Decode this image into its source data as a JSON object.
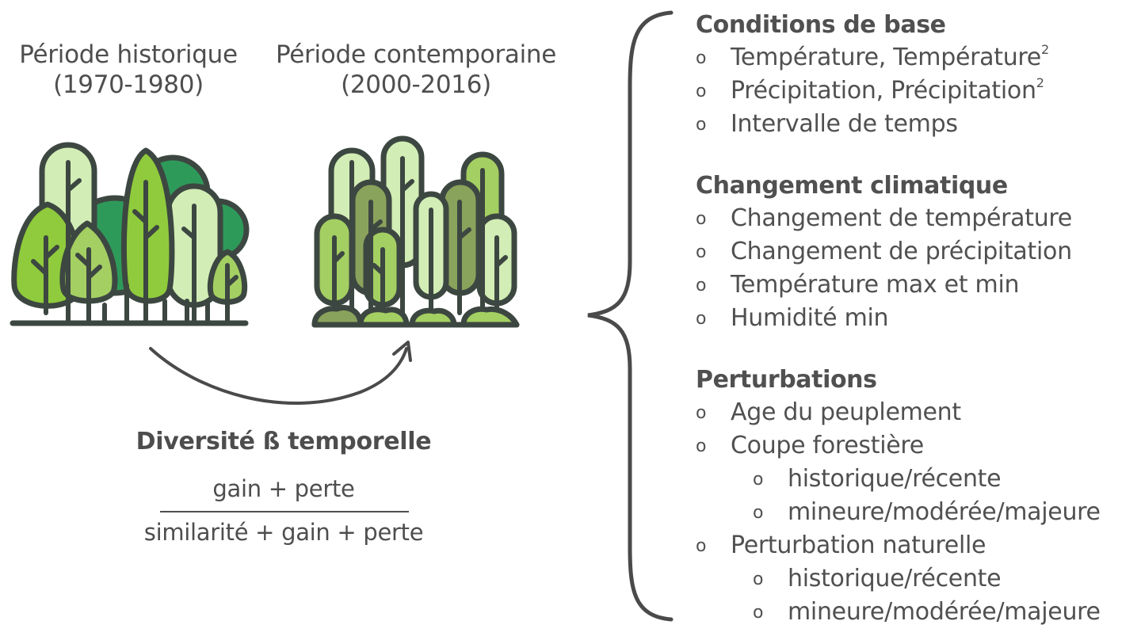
{
  "periods": {
    "historical": {
      "name": "Période historique",
      "years": "(1970-1980)"
    },
    "contemporary": {
      "name": "Période contemporaine",
      "years": "(2000-2016)"
    }
  },
  "diversity": {
    "title": "Diversité ß temporelle",
    "numerator": "gain + perte",
    "denominator": "similarité + gain + perte"
  },
  "sections": {
    "base": {
      "title": "Conditions de base",
      "items": [
        "Température, Température",
        "Précipitation, Précipitation",
        "Intervalle de temps"
      ],
      "superscript": "2"
    },
    "climate": {
      "title": "Changement climatique",
      "items": [
        "Changement de température",
        "Changement de précipitation",
        "Température max et min",
        "Humidité min"
      ]
    },
    "disturbance": {
      "title": "Perturbations",
      "items": [
        "Age du peuplement",
        "Coupe forestière",
        "Perturbation naturelle"
      ],
      "sub_items": [
        "historique/récente",
        "mineure/modérée/majeure"
      ]
    }
  },
  "bullet_symbol": "o",
  "colors": {
    "outline": "#3d4741",
    "light_green": "#d2edb5",
    "mid_green": "#a4cf62",
    "bright_green": "#8fcb3c",
    "dark_green": "#2e9a5a",
    "olive_green": "#8aa35c",
    "text": "#505050"
  }
}
